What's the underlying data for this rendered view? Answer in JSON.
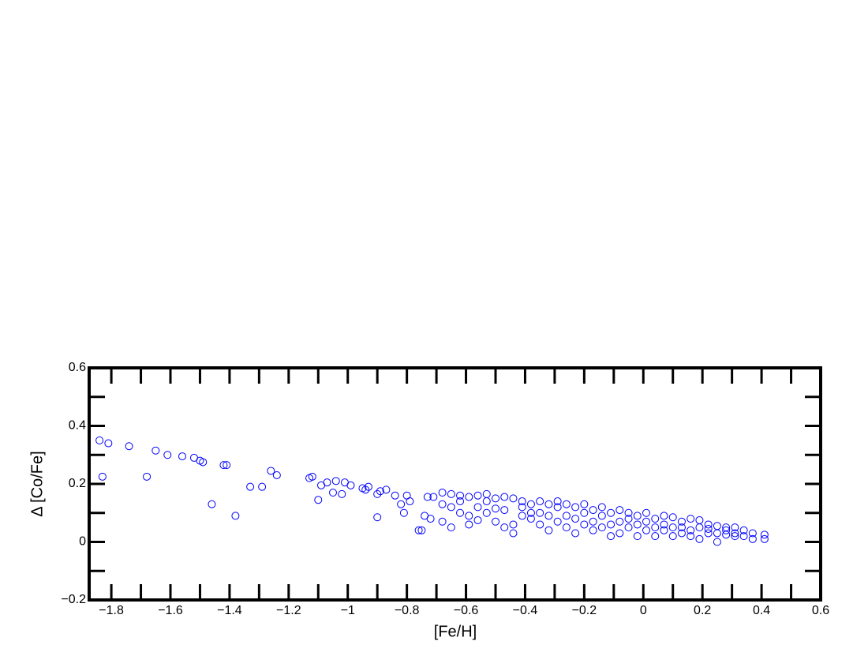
{
  "chart_data": {
    "type": "scatter",
    "xlabel": "[Fe/H]",
    "ylabel": "Δ [Co/Fe]",
    "xlim": [
      -1.875,
      0.6
    ],
    "ylim": [
      -0.2,
      0.6
    ],
    "xticks": [
      {
        "value": -1.8,
        "label": "−1.8"
      },
      {
        "value": -1.6,
        "label": "−1.6"
      },
      {
        "value": -1.4,
        "label": "−1.4"
      },
      {
        "value": -1.2,
        "label": "−1.2"
      },
      {
        "value": -1,
        "label": "−1"
      },
      {
        "value": -0.8,
        "label": "−0.8"
      },
      {
        "value": -0.6,
        "label": "−0.6"
      },
      {
        "value": -0.4,
        "label": "−0.4"
      },
      {
        "value": -0.2,
        "label": "−0.2"
      },
      0,
      0.2,
      0.4,
      0.6
    ],
    "xminorticks": [
      -1.7,
      -1.5,
      -1.3,
      -1.1,
      -0.9,
      -0.7,
      -0.5,
      -0.3,
      -0.1,
      0.1,
      0.3,
      0.5
    ],
    "yticks": [
      {
        "value": -0.2,
        "label": "−0.2"
      },
      0,
      0.2,
      0.4,
      0.6
    ],
    "yminorticks": [
      -0.1,
      0.1,
      0.3,
      0.5
    ],
    "series": [
      {
        "color": "#0000ff",
        "x": [
          -1.84,
          -1.83,
          -1.81,
          -1.74,
          -1.68,
          -1.65,
          -1.61,
          -1.56,
          -1.52,
          -1.5,
          -1.49,
          -1.46,
          -1.42,
          -1.41,
          -1.38,
          -1.33,
          -1.29,
          -1.26,
          -1.24,
          -1.13,
          -1.12,
          -1.1,
          -1.09,
          -1.07,
          -1.05,
          -1.04,
          -1.02,
          -1.01,
          -0.99,
          -0.95,
          -0.94,
          -0.93,
          -0.9,
          -0.9,
          -0.89,
          -0.87,
          -0.84,
          -0.82,
          -0.81,
          -0.8,
          -0.79,
          -0.76,
          -0.75,
          -0.74,
          -0.73,
          -0.72,
          -0.71,
          -0.68,
          -0.68,
          -0.68,
          -0.65,
          -0.65,
          -0.65,
          -0.62,
          -0.62,
          -0.62,
          -0.59,
          -0.59,
          -0.59,
          -0.56,
          -0.56,
          -0.56,
          -0.53,
          -0.53,
          -0.53,
          -0.5,
          -0.5,
          -0.5,
          -0.47,
          -0.47,
          -0.47,
          -0.44,
          -0.44,
          -0.44,
          -0.41,
          -0.41,
          -0.41,
          -0.38,
          -0.38,
          -0.38,
          -0.35,
          -0.35,
          -0.35,
          -0.32,
          -0.32,
          -0.32,
          -0.29,
          -0.29,
          -0.29,
          -0.26,
          -0.26,
          -0.26,
          -0.23,
          -0.23,
          -0.23,
          -0.2,
          -0.2,
          -0.2,
          -0.17,
          -0.17,
          -0.17,
          -0.14,
          -0.14,
          -0.14,
          -0.11,
          -0.11,
          -0.11,
          -0.08,
          -0.08,
          -0.08,
          -0.05,
          -0.05,
          -0.05,
          -0.02,
          -0.02,
          -0.02,
          0.01,
          0.01,
          0.01,
          0.04,
          0.04,
          0.04,
          0.07,
          0.07,
          0.07,
          0.1,
          0.1,
          0.1,
          0.13,
          0.13,
          0.13,
          0.16,
          0.16,
          0.16,
          0.19,
          0.19,
          0.19,
          0.22,
          0.22,
          0.22,
          0.25,
          0.25,
          0.25,
          0.28,
          0.28,
          0.28,
          0.31,
          0.31,
          0.31,
          0.34,
          0.34,
          0.37,
          0.37,
          0.41,
          0.41
        ],
        "values": [
          0.35,
          0.225,
          0.34,
          0.33,
          0.225,
          0.315,
          0.3,
          0.295,
          0.29,
          0.28,
          0.275,
          0.13,
          0.265,
          0.265,
          0.09,
          0.19,
          0.19,
          0.245,
          0.23,
          0.22,
          0.225,
          0.145,
          0.195,
          0.205,
          0.17,
          0.21,
          0.165,
          0.205,
          0.195,
          0.185,
          0.18,
          0.19,
          0.085,
          0.165,
          0.175,
          0.18,
          0.16,
          0.13,
          0.1,
          0.16,
          0.14,
          0.04,
          0.04,
          0.09,
          0.155,
          0.08,
          0.155,
          0.17,
          0.13,
          0.07,
          0.165,
          0.12,
          0.05,
          0.16,
          0.1,
          0.14,
          0.155,
          0.09,
          0.06,
          0.16,
          0.12,
          0.075,
          0.165,
          0.14,
          0.1,
          0.15,
          0.07,
          0.115,
          0.155,
          0.11,
          0.05,
          0.15,
          0.06,
          0.03,
          0.14,
          0.09,
          0.12,
          0.13,
          0.08,
          0.1,
          0.14,
          0.1,
          0.06,
          0.13,
          0.04,
          0.09,
          0.12,
          0.07,
          0.14,
          0.13,
          0.05,
          0.09,
          0.12,
          0.08,
          0.03,
          0.13,
          0.06,
          0.1,
          0.11,
          0.04,
          0.07,
          0.12,
          0.09,
          0.05,
          0.1,
          0.02,
          0.06,
          0.11,
          0.07,
          0.03,
          0.1,
          0.05,
          0.08,
          0.09,
          0.02,
          0.06,
          0.1,
          0.07,
          0.04,
          0.08,
          0.05,
          0.02,
          0.09,
          0.04,
          0.06,
          0.085,
          0.05,
          0.02,
          0.07,
          0.03,
          0.05,
          0.08,
          0.04,
          0.02,
          0.075,
          0.05,
          0.01,
          0.06,
          0.03,
          0.045,
          0.055,
          0.0,
          0.03,
          0.05,
          0.025,
          0.04,
          0.05,
          0.03,
          0.02,
          0.04,
          0.02,
          0.03,
          0.01,
          0.025,
          0.01
        ]
      }
    ]
  }
}
